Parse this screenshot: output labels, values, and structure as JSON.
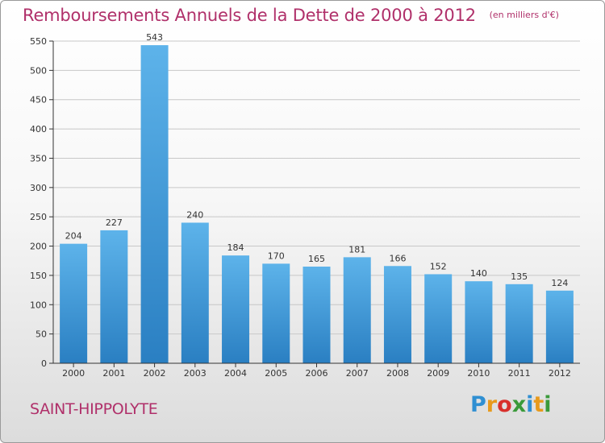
{
  "header": {
    "title": "Remboursements Annuels de la Dette de 2000 à 2012",
    "unit_note": "(en milliers d'€)"
  },
  "commune": "SAINT-HIPPOLYTE",
  "logo": {
    "text": "Proxiti",
    "letters": [
      {
        "ch": "P",
        "color": "#2f8fd2"
      },
      {
        "ch": "r",
        "color": "#e89a1c"
      },
      {
        "ch": "o",
        "color": "#d8302c"
      },
      {
        "ch": "x",
        "color": "#3a9a3a"
      },
      {
        "ch": "i",
        "color": "#2f8fd2"
      },
      {
        "ch": "t",
        "color": "#e89a1c"
      },
      {
        "ch": "i",
        "color": "#3a9a3a"
      }
    ]
  },
  "colors": {
    "title": "#b0306a",
    "bar_top": "#5db3ea",
    "bar_bottom": "#2a7fc2",
    "axis": "#333333",
    "grid": "#c8c8c8"
  },
  "chart_data": {
    "type": "bar",
    "title": "Remboursements Annuels de la Dette de 2000 à 2012",
    "subtitle": "(en milliers d'€)",
    "xlabel": "",
    "ylabel": "",
    "categories": [
      "2000",
      "2001",
      "2002",
      "2003",
      "2004",
      "2005",
      "2006",
      "2007",
      "2008",
      "2009",
      "2010",
      "2011",
      "2012"
    ],
    "values": [
      204,
      227,
      543,
      240,
      184,
      170,
      165,
      181,
      166,
      152,
      140,
      135,
      124
    ],
    "ylim": [
      0,
      550
    ],
    "yticks": [
      0,
      50,
      100,
      150,
      200,
      250,
      300,
      350,
      400,
      450,
      500,
      550
    ],
    "grid": true,
    "legend": "none"
  }
}
